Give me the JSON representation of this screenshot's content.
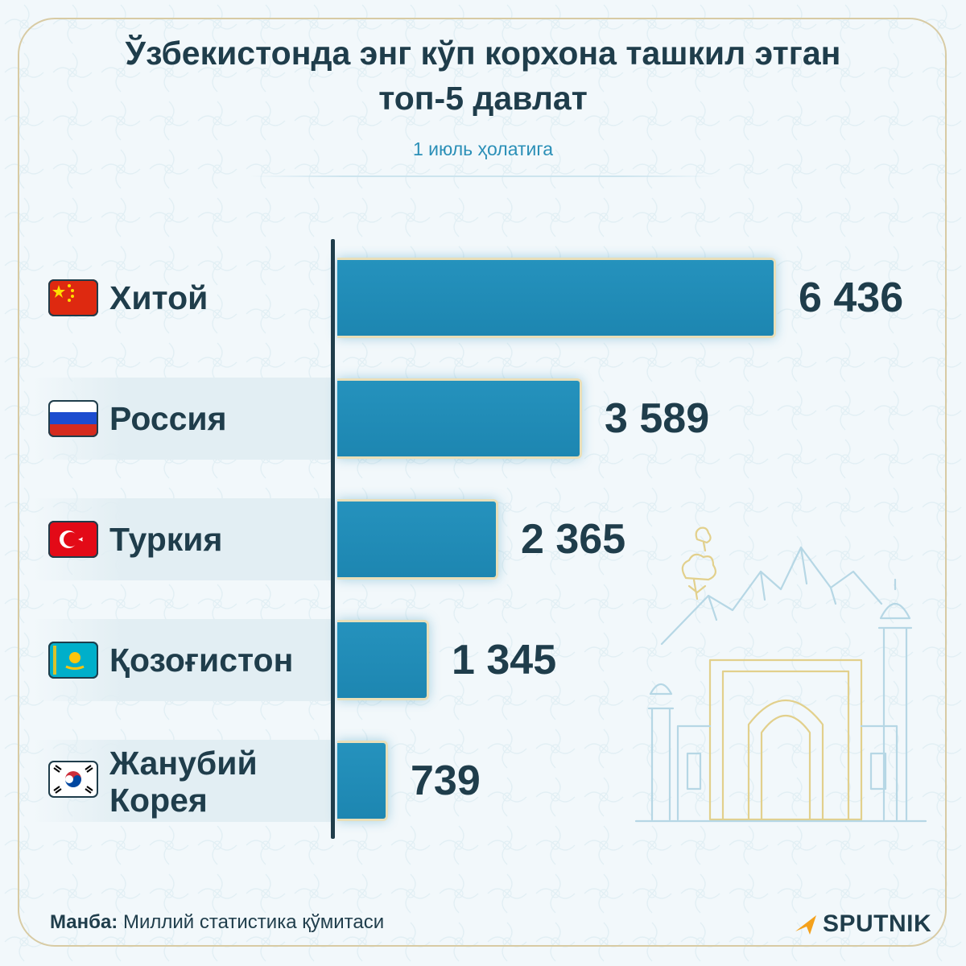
{
  "title": "Ўзбекистонда энг кўп корхона ташкил этган топ-5 давлат",
  "subtitle": "1 июль ҳолатига",
  "source": {
    "label": "Манба:",
    "text": "Миллий статистика қўмитаси"
  },
  "brand": "SPUTNIK",
  "colors": {
    "bar": "#1d86b1",
    "bar_border": "#e9dfb9",
    "text": "#1f3d4b",
    "subtitle": "#2a8fb7",
    "background": "#f2f8fb",
    "brand_accent": "#f4a11c"
  },
  "chart_data": {
    "type": "bar",
    "orientation": "horizontal",
    "title": "Ўзбекистонда энг кўп корхона ташкил этган топ-5 давлат",
    "subtitle": "1 июль ҳолатига",
    "categories": [
      "Хитой",
      "Россия",
      "Туркия",
      "Қозоғистон",
      "Жанубий Корея"
    ],
    "value_labels": [
      "6 436",
      "3 589",
      "2 365",
      "1 345",
      "739"
    ],
    "values": [
      6436,
      3589,
      2365,
      1345,
      739
    ],
    "flags": [
      "china-flag-icon",
      "russia-flag-icon",
      "turkey-flag-icon",
      "kazakhstan-flag-icon",
      "south-korea-flag-icon"
    ],
    "xlim": [
      0,
      6436
    ],
    "grid": false,
    "legend": "none"
  }
}
